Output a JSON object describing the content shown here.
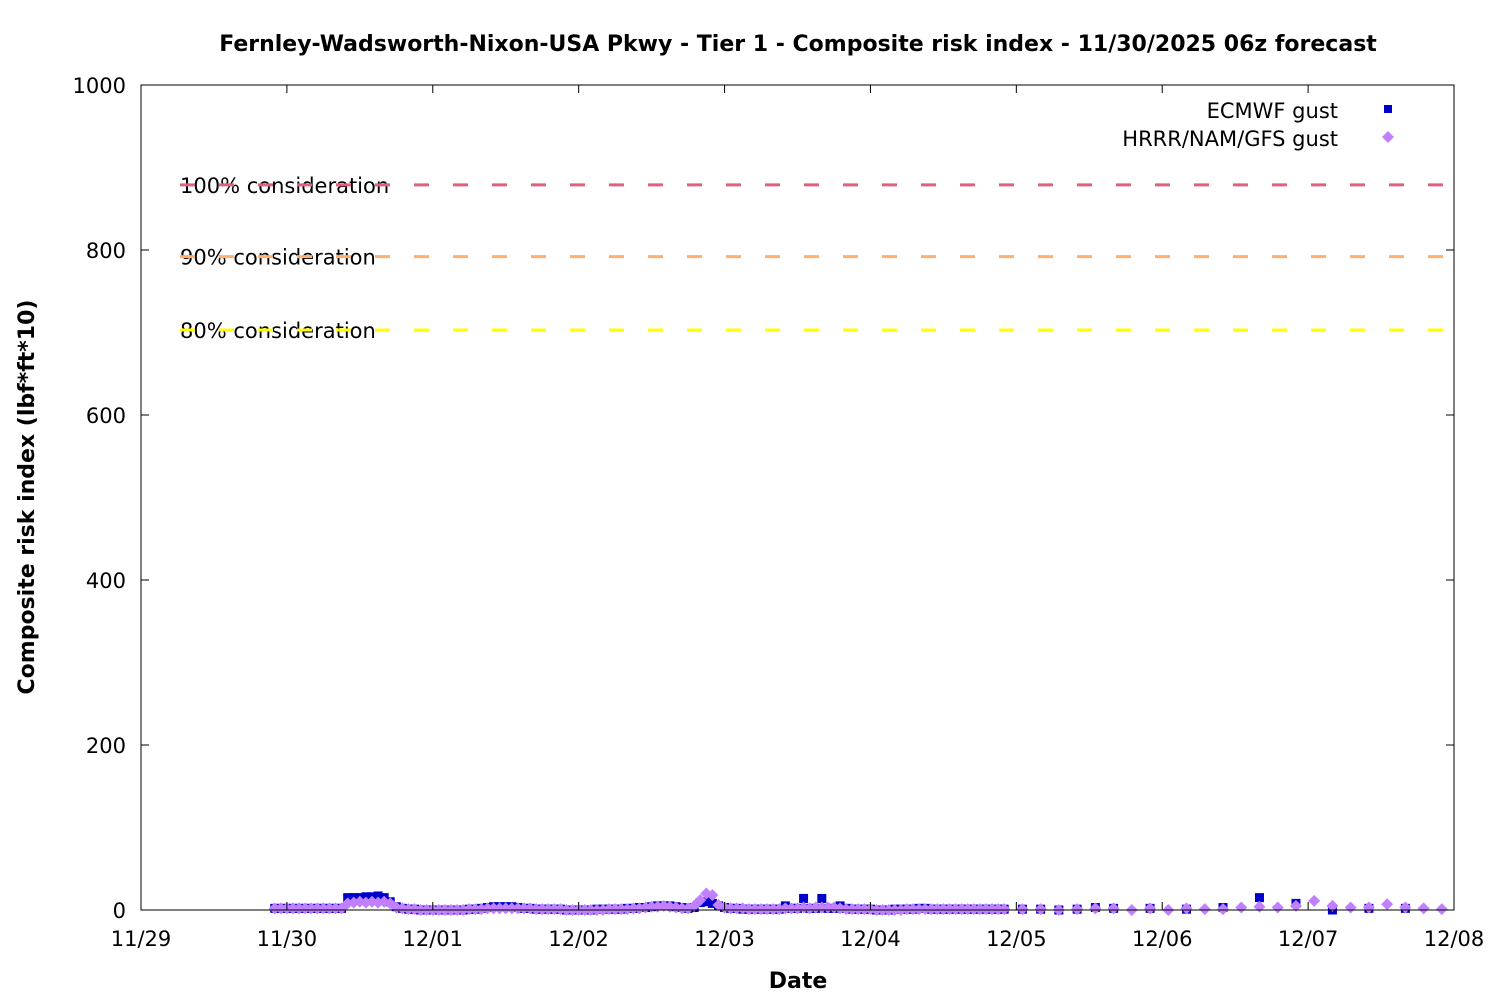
{
  "chart_data": {
    "type": "scatter",
    "title": "Fernley-Wadsworth-Nixon-USA Pkwy - Tier 1 - Composite risk index - 11/30/2025 06z forecast",
    "xlabel": "Date",
    "ylabel": "Composite risk index (lbf*ft*10)",
    "xlim": [
      "11/29 00",
      "12/08 00"
    ],
    "ylim": [
      0,
      1000
    ],
    "x_tick_labels": [
      "11/29",
      "11/30",
      "12/01",
      "12/02",
      "12/03",
      "12/04",
      "12/05",
      "12/06",
      "12/07",
      "12/08"
    ],
    "y_tick_labels": [
      "0",
      "200",
      "400",
      "600",
      "800",
      "1000"
    ],
    "y_ticks": [
      0,
      200,
      400,
      600,
      800,
      1000
    ],
    "grid": false,
    "legend_placement": "top-right",
    "thresholds": [
      {
        "label": "100% consideration",
        "value": 879,
        "color": "#e0607e"
      },
      {
        "label": "90% consideration",
        "value": 792,
        "color": "#ffb070"
      },
      {
        "label": "80% consideration",
        "value": 703,
        "color": "#ffff00"
      }
    ],
    "hourly_times": [
      "11/29 22",
      "11/29 23",
      "11/30 00",
      "11/30 01",
      "11/30 02",
      "11/30 03",
      "11/30 04",
      "11/30 05",
      "11/30 06",
      "11/30 07",
      "11/30 08",
      "11/30 09",
      "11/30 10",
      "11/30 11",
      "11/30 12",
      "11/30 13",
      "11/30 14",
      "11/30 15",
      "11/30 16",
      "11/30 17",
      "11/30 18",
      "11/30 19",
      "11/30 20",
      "11/30 21",
      "11/30 22",
      "11/30 23",
      "12/01 00",
      "12/01 01",
      "12/01 02",
      "12/01 03",
      "12/01 04",
      "12/01 05",
      "12/01 06",
      "12/01 07",
      "12/01 08",
      "12/01 09",
      "12/01 10",
      "12/01 11",
      "12/01 12",
      "12/01 13",
      "12/01 14",
      "12/01 15",
      "12/01 16",
      "12/01 17",
      "12/01 18",
      "12/01 19",
      "12/01 20",
      "12/01 21",
      "12/01 22",
      "12/01 23",
      "12/02 00",
      "12/02 01",
      "12/02 02",
      "12/02 03",
      "12/02 04",
      "12/02 05",
      "12/02 06",
      "12/02 07",
      "12/02 08",
      "12/02 09",
      "12/02 10",
      "12/02 11",
      "12/02 12",
      "12/02 13",
      "12/02 14",
      "12/02 15",
      "12/02 16",
      "12/02 17",
      "12/02 18",
      "12/02 19",
      "12/02 20",
      "12/02 21",
      "12/02 22",
      "12/02 23",
      "12/03 00",
      "12/03 01",
      "12/03 02",
      "12/03 03",
      "12/03 04",
      "12/03 05",
      "12/03 06",
      "12/03 07",
      "12/03 08",
      "12/03 09",
      "12/03 10",
      "12/03 11",
      "12/03 12",
      "12/03 13",
      "12/03 14",
      "12/03 15",
      "12/03 16",
      "12/03 17",
      "12/03 18",
      "12/03 19",
      "12/03 20",
      "12/03 21",
      "12/03 22",
      "12/03 23",
      "12/04 00",
      "12/04 01",
      "12/04 02",
      "12/04 03",
      "12/04 04",
      "12/04 05",
      "12/04 06",
      "12/04 07",
      "12/04 08",
      "12/04 09",
      "12/04 10",
      "12/04 11",
      "12/04 12",
      "12/04 13",
      "12/04 14",
      "12/04 15",
      "12/04 16",
      "12/04 17",
      "12/04 18",
      "12/04 19",
      "12/04 20",
      "12/04 21",
      "12/04 22"
    ],
    "series": [
      {
        "name": "ECMWF gust",
        "marker": "square",
        "color": "#0000cc",
        "hourly_values": [
          2,
          2,
          2,
          2,
          2,
          2,
          2,
          2,
          2,
          2,
          2,
          2,
          15,
          15,
          15,
          16,
          16,
          17,
          15,
          10,
          4,
          2,
          1,
          1,
          0,
          0,
          0,
          0,
          0,
          0,
          0,
          0,
          1,
          1,
          2,
          3,
          4,
          4,
          4,
          4,
          3,
          2,
          2,
          1,
          1,
          1,
          1,
          1,
          0,
          0,
          0,
          0,
          0,
          1,
          1,
          1,
          1,
          1,
          2,
          2,
          3,
          3,
          4,
          5,
          5,
          5,
          4,
          3,
          2,
          3,
          9,
          10,
          8,
          5,
          3,
          2,
          2,
          1,
          1,
          1,
          1,
          1,
          1,
          1,
          5,
          2,
          2,
          14,
          2,
          2,
          14,
          2,
          2,
          5,
          2,
          1,
          1,
          1,
          1,
          0,
          0,
          0,
          1,
          1,
          1,
          1,
          2,
          2,
          1,
          1,
          1,
          1,
          1,
          1,
          1,
          1,
          1,
          1,
          1,
          1,
          1
        ],
        "extended": [
          [
            "12/05 01",
            1
          ],
          [
            "12/05 04",
            1
          ],
          [
            "12/05 07",
            0
          ],
          [
            "12/05 10",
            1
          ],
          [
            "12/05 13",
            3
          ],
          [
            "12/05 16",
            2
          ],
          [
            "12/05 22",
            2
          ],
          [
            "12/06 04",
            1
          ],
          [
            "12/06 10",
            3
          ],
          [
            "12/06 16",
            15
          ],
          [
            "12/06 22",
            8
          ],
          [
            "12/07 04",
            0
          ],
          [
            "12/07 10",
            2
          ],
          [
            "12/07 16",
            2
          ]
        ]
      },
      {
        "name": "HRRR/NAM/GFS gust",
        "marker": "diamond",
        "color": "#c080ff",
        "hourly_values": [
          2,
          2,
          2,
          2,
          2,
          2,
          2,
          2,
          2,
          2,
          2,
          2,
          8,
          9,
          10,
          9,
          10,
          9,
          10,
          8,
          3,
          2,
          1,
          1,
          0,
          0,
          0,
          0,
          0,
          0,
          0,
          0,
          1,
          1,
          1,
          2,
          2,
          2,
          2,
          2,
          2,
          2,
          2,
          1,
          1,
          1,
          1,
          1,
          0,
          0,
          0,
          0,
          0,
          0,
          0,
          1,
          1,
          1,
          1,
          2,
          2,
          3,
          4,
          4,
          5,
          4,
          3,
          2,
          2,
          5,
          12,
          20,
          18,
          6,
          3,
          2,
          2,
          2,
          1,
          1,
          1,
          1,
          1,
          1,
          2,
          2,
          2,
          3,
          2,
          3,
          3,
          3,
          3,
          2,
          1,
          1,
          1,
          1,
          1,
          0,
          0,
          0,
          0,
          0,
          1,
          1,
          1,
          1,
          1,
          1,
          1,
          1,
          1,
          1,
          1,
          1,
          1,
          1,
          1,
          1,
          1
        ],
        "extended": [
          [
            "12/05 01",
            1
          ],
          [
            "12/05 04",
            1
          ],
          [
            "12/05 07",
            0
          ],
          [
            "12/05 10",
            1
          ],
          [
            "12/05 13",
            2
          ],
          [
            "12/05 16",
            2
          ],
          [
            "12/05 19",
            0
          ],
          [
            "12/05 22",
            2
          ],
          [
            "12/06 01",
            0
          ],
          [
            "12/06 04",
            2
          ],
          [
            "12/06 07",
            1
          ],
          [
            "12/06 10",
            1
          ],
          [
            "12/06 13",
            3
          ],
          [
            "12/06 16",
            4
          ],
          [
            "12/06 19",
            3
          ],
          [
            "12/06 22",
            5
          ],
          [
            "12/07 01",
            11
          ],
          [
            "12/07 04",
            5
          ],
          [
            "12/07 07",
            3
          ],
          [
            "12/07 10",
            3
          ],
          [
            "12/07 13",
            7
          ],
          [
            "12/07 16",
            3
          ],
          [
            "12/07 19",
            2
          ],
          [
            "12/07 22",
            1
          ]
        ]
      }
    ]
  }
}
